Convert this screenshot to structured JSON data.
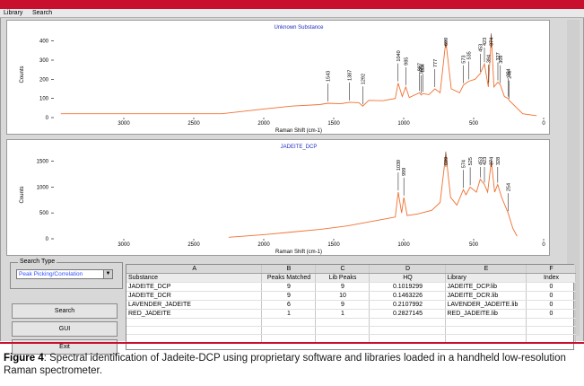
{
  "menu": [
    "Library",
    "Search"
  ],
  "chart_data": [
    {
      "type": "line",
      "title": "Unknown Substance",
      "xlabel": "Raman Shift (cm-1)",
      "ylabel": "Counts",
      "xlim": [
        3500,
        0
      ],
      "ylim": [
        0,
        450
      ],
      "x_ticks": [
        "3000",
        "2500",
        "2000",
        "1500",
        "1000",
        "500",
        "0"
      ],
      "y_ticks": [
        "0",
        "100",
        "200",
        "300",
        "400"
      ],
      "series_color": "#f07030",
      "x": [
        3450,
        3000,
        2500,
        2300,
        2000,
        1800,
        1600,
        1543,
        1450,
        1387,
        1320,
        1292,
        1250,
        1150,
        1060,
        1040,
        1010,
        985,
        960,
        887,
        875,
        864,
        820,
        777,
        740,
        699,
        660,
        600,
        573,
        535,
        490,
        453,
        423,
        395,
        374,
        355,
        327,
        309,
        280,
        254,
        246,
        150,
        50
      ],
      "y": [
        20,
        20,
        20,
        20,
        45,
        60,
        68,
        75,
        72,
        80,
        78,
        60,
        90,
        88,
        100,
        180,
        110,
        160,
        105,
        130,
        118,
        125,
        120,
        150,
        130,
        400,
        150,
        130,
        170,
        190,
        200,
        230,
        280,
        160,
        430,
        160,
        185,
        170,
        110,
        100,
        90,
        20,
        10
      ],
      "peak_labels": [
        "1543",
        "1387",
        "1292",
        "1040",
        "985",
        "887",
        "875",
        "864",
        "777",
        "699",
        "573",
        "535",
        "453",
        "423",
        "394",
        "374",
        "327",
        "309",
        "254",
        "246"
      ],
      "peak_label_x": [
        1543,
        1387,
        1292,
        1040,
        985,
        887,
        875,
        864,
        777,
        699,
        573,
        535,
        453,
        423,
        394,
        374,
        327,
        309,
        254,
        246
      ]
    },
    {
      "type": "line",
      "title": "JADEITE_DCP",
      "xlabel": "Raman Shift (cm-1)",
      "ylabel": "Counts",
      "xlim": [
        3500,
        0
      ],
      "ylim": [
        0,
        1700
      ],
      "x_ticks": [
        "3000",
        "2500",
        "2000",
        "1500",
        "1000",
        "500",
        "0"
      ],
      "y_ticks": [
        "0",
        "500",
        "1000",
        "1500"
      ],
      "series_color": "#f07030",
      "x": [
        2250,
        2000,
        1800,
        1600,
        1400,
        1200,
        1100,
        1060,
        1039,
        1015,
        999,
        975,
        900,
        800,
        740,
        699,
        665,
        620,
        574,
        555,
        525,
        480,
        453,
        423,
        400,
        374,
        350,
        328,
        300,
        254,
        220,
        190
      ],
      "y": [
        30,
        80,
        130,
        180,
        250,
        350,
        400,
        420,
        900,
        500,
        800,
        450,
        480,
        550,
        700,
        1650,
        800,
        650,
        950,
        850,
        1000,
        900,
        1150,
        1050,
        900,
        1500,
        900,
        1050,
        800,
        500,
        200,
        50
      ],
      "peak_labels": [
        "1039",
        "999",
        "699",
        "574",
        "525",
        "453",
        "423",
        "374",
        "328",
        "254"
      ],
      "peak_label_x": [
        1039,
        999,
        699,
        574,
        525,
        453,
        423,
        374,
        328,
        254
      ]
    }
  ],
  "search": {
    "group_label": "Search Type",
    "selected": "Peak Picking/Correlation",
    "buttons": [
      "Search",
      "GUI",
      "Exit"
    ]
  },
  "results": {
    "col_letters": [
      "A",
      "B",
      "C",
      "D",
      "E",
      "F"
    ],
    "headers": [
      "Substance",
      "Peaks Matched",
      "Lib Peaks",
      "HQ",
      "Library",
      "Index"
    ],
    "rows": [
      [
        "JADEITE_DCP",
        "9",
        "9",
        "0.1019299",
        "JADEITE_DCP.lib",
        "0"
      ],
      [
        "JADEITE_DCR",
        "9",
        "10",
        "0.1463226",
        "JADEITE_DCR.lib",
        "0"
      ],
      [
        "LAVENDER_JADEITE",
        "6",
        "9",
        "0.2107992",
        "LAVENDER_JADEITE.lib",
        "0"
      ],
      [
        "RED_JADEITE",
        "1",
        "1",
        "0.2827145",
        "RED_JADEITE.lib",
        "0"
      ]
    ]
  },
  "caption": {
    "label": "Figure 4",
    "text": ": Spectral identification of Jadeite-DCP using proprietary software and libraries loaded in a handheld low-resolution Raman spectrometer."
  }
}
